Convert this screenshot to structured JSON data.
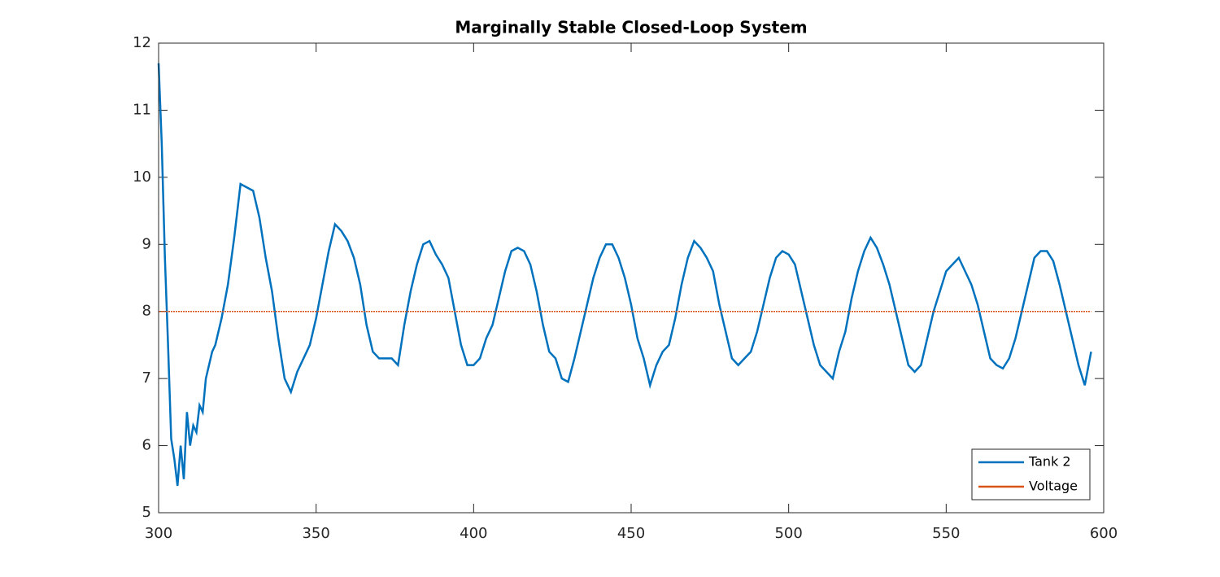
{
  "chart_data": {
    "type": "line",
    "title": "Marginally Stable Closed-Loop System",
    "series": [
      {
        "name": "Tank 2",
        "color": "#0072bd",
        "x": [
          300,
          301,
          302,
          303,
          304,
          305,
          306,
          307,
          308,
          309,
          310,
          311,
          312,
          313,
          314,
          315,
          316,
          317,
          318,
          320,
          322,
          324,
          326,
          328,
          330,
          332,
          334,
          336,
          338,
          340,
          342,
          344,
          346,
          348,
          350,
          352,
          354,
          356,
          358,
          360,
          362,
          364,
          366,
          368,
          370,
          372,
          374,
          376,
          378,
          380,
          382,
          384,
          386,
          388,
          390,
          392,
          394,
          396,
          398,
          400,
          402,
          404,
          406,
          408,
          410,
          412,
          414,
          416,
          418,
          420,
          422,
          424,
          426,
          428,
          430,
          432,
          434,
          436,
          438,
          440,
          442,
          444,
          446,
          448,
          450,
          452,
          454,
          456,
          458,
          460,
          462,
          464,
          466,
          468,
          470,
          472,
          474,
          476,
          478,
          480,
          482,
          484,
          486,
          488,
          490,
          492,
          494,
          496,
          498,
          500,
          502,
          504,
          506,
          508,
          510,
          512,
          514,
          516,
          518,
          520,
          522,
          524,
          526,
          528,
          530,
          532,
          534,
          536,
          538,
          540,
          542,
          544,
          546,
          548,
          550,
          552,
          554,
          556,
          558,
          560,
          562,
          564,
          566,
          568,
          570,
          572,
          574,
          576,
          578,
          580,
          582,
          584,
          586,
          588,
          590,
          592,
          594,
          596
        ],
        "values": [
          11.7,
          10.5,
          8.8,
          7.5,
          6.1,
          5.8,
          5.4,
          6.0,
          5.5,
          6.5,
          6.0,
          6.3,
          6.2,
          6.6,
          6.5,
          7.0,
          7.2,
          7.4,
          7.5,
          7.9,
          8.4,
          9.1,
          9.9,
          9.85,
          9.8,
          9.4,
          8.8,
          8.3,
          7.6,
          7.0,
          6.8,
          7.1,
          7.3,
          7.5,
          7.9,
          8.4,
          8.9,
          9.3,
          9.2,
          9.05,
          8.8,
          8.4,
          7.8,
          7.4,
          7.3,
          7.3,
          7.3,
          7.2,
          7.8,
          8.3,
          8.7,
          9.0,
          9.05,
          8.85,
          8.7,
          8.5,
          8.0,
          7.5,
          7.2,
          7.2,
          7.3,
          7.6,
          7.8,
          8.2,
          8.6,
          8.9,
          8.95,
          8.9,
          8.7,
          8.3,
          7.8,
          7.4,
          7.3,
          7.0,
          6.95,
          7.3,
          7.7,
          8.1,
          8.5,
          8.8,
          9.0,
          9.0,
          8.8,
          8.5,
          8.1,
          7.6,
          7.3,
          6.9,
          7.2,
          7.4,
          7.5,
          7.9,
          8.4,
          8.8,
          9.05,
          8.95,
          8.8,
          8.6,
          8.1,
          7.7,
          7.3,
          7.2,
          7.3,
          7.4,
          7.7,
          8.1,
          8.5,
          8.8,
          8.9,
          8.85,
          8.7,
          8.3,
          7.9,
          7.5,
          7.2,
          7.1,
          7.0,
          7.4,
          7.7,
          8.2,
          8.6,
          8.9,
          9.1,
          8.95,
          8.7,
          8.4,
          8.0,
          7.6,
          7.2,
          7.1,
          7.2,
          7.6,
          8.0,
          8.3,
          8.6,
          8.7,
          8.8,
          8.6,
          8.4,
          8.1,
          7.7,
          7.3,
          7.2,
          7.15,
          7.3,
          7.6,
          8.0,
          8.4,
          8.8,
          8.9,
          8.9,
          8.75,
          8.4,
          8.0,
          7.6,
          7.2,
          6.9,
          7.4
        ]
      },
      {
        "name": "Voltage",
        "color": "#d95319",
        "x": [
          300,
          596
        ],
        "values": [
          8,
          8
        ]
      }
    ],
    "xlim": [
      300,
      600
    ],
    "xticks": [
      300,
      350,
      400,
      450,
      500,
      550,
      600
    ],
    "ylim": [
      5,
      12
    ],
    "yticks": [
      5,
      6,
      7,
      8,
      9,
      10,
      11,
      12
    ],
    "legend": "lower right"
  }
}
